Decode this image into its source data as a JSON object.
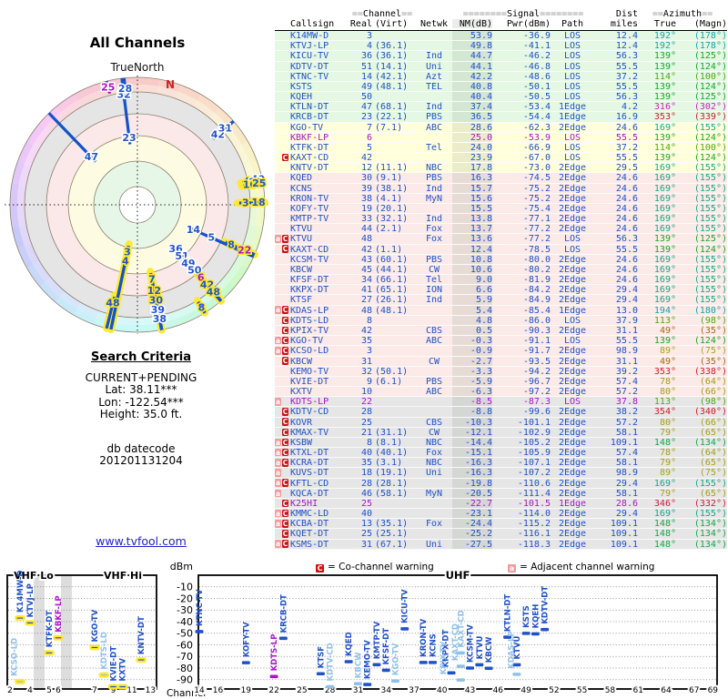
{
  "colors": {
    "blue": "#2051c9",
    "light_blue": "#8fc0ea",
    "purple": "#a816c8",
    "highlight_yellow": "#ffe92e",
    "co_warning": "#cc1111",
    "adj_warning": "#f29b9b",
    "zone_green": "#e4f8e4",
    "zone_yellow": "#ffffd9",
    "zone_pink": "#fbeae7",
    "zone_gray": "#e6e6e6",
    "link_blue": "#2222cc",
    "north_red": "#cc2222"
  },
  "radar": {
    "title": "All Channels",
    "north_label": "TrueNorth",
    "n_marker": "N"
  },
  "search": {
    "heading": "Search Criteria",
    "mode": "CURRENT+PENDING",
    "lat": "Lat: 38.11***",
    "lon": "Lon: -122.54***",
    "height": "Height: 35.0 ft.",
    "db_label": "db datecode",
    "db_code": "201201131204"
  },
  "link": "www.tvfool.com",
  "table": {
    "h1": {
      "c_pre": "==",
      "c_label": "Channel",
      "c_post": "==",
      "s_pre": "========",
      "s_label": "Signal",
      "s_post": "========",
      "dist": "Dist",
      "a_pre": "==",
      "a_label": "Azimuth",
      "a_post": "=="
    },
    "h2": {
      "cs": "Callsign",
      "real": "Real",
      "virt": "(Virt)",
      "net": "Netwk",
      "nm": "NM(dB)",
      "pwr": "Pwr(dBm)",
      "path": "Path",
      "mi": "miles",
      "true": "True",
      "magn": "(Magn)"
    }
  },
  "legend": {
    "c": "C",
    "co": "= Co-channel warning",
    "a": "a",
    "adj": "= Adjacent channel warning"
  },
  "spectrum": {
    "band_vhf_lo": "VHF Lo",
    "band_vhf_hi": "VHF Hi",
    "band_uhf": "UHF",
    "dbm": "dBm",
    "channel": "Channel",
    "dbm_ticks": [
      -10,
      -20,
      -30,
      -40,
      -50,
      -60,
      -70,
      -80,
      -90
    ],
    "vhf_ticks": [
      2,
      4,
      5,
      6,
      7,
      9,
      11,
      13
    ],
    "uhf_ticks": [
      14,
      16,
      19,
      22,
      25,
      28,
      31,
      34,
      37,
      40,
      43,
      46,
      49,
      52,
      55,
      58,
      61,
      64,
      67,
      69
    ]
  },
  "chart_data": {
    "type": [
      "polar",
      "scatter",
      "table"
    ],
    "radar_meta": {
      "title": "All Channels",
      "angle_field": "az",
      "radius_field": "nm",
      "center_is_strongest": true,
      "north_label": "TrueNorth"
    },
    "spectrum_meta": {
      "type": "scatter",
      "x_field": "ch",
      "y_field": "pwr",
      "xlabel": "Channel",
      "ylabel": "dBm",
      "ylim": [
        -100,
        0
      ],
      "bands": [
        "VHF Lo",
        "VHF Hi",
        "UHF"
      ],
      "grid": true
    },
    "stations": [
      {
        "cs": "K14MW-D",
        "ch": 3,
        "virt": "",
        "net": "",
        "nm": 53.9,
        "pwr": -36.9,
        "path": "LOS",
        "mi": 12.4,
        "az": 192,
        "mag": 178,
        "zone": "green",
        "cc": "",
        "hl": true
      },
      {
        "cs": "KTVJ-LP",
        "ch": 4,
        "virt": "(36.1)",
        "net": "",
        "nm": 49.8,
        "pwr": -41.1,
        "path": "LOS",
        "mi": 12.4,
        "az": 192,
        "mag": 178,
        "zone": "green",
        "cc": "",
        "hl": true
      },
      {
        "cs": "KICU-TV",
        "ch": 36,
        "virt": "(36.1)",
        "net": "Ind",
        "nm": 44.7,
        "pwr": -46.2,
        "path": "LOS",
        "mi": 56.3,
        "az": 139,
        "mag": 125,
        "zone": "green",
        "cc": ""
      },
      {
        "cs": "KDTV-DT",
        "ch": 51,
        "virt": "(14.1)",
        "net": "Uni",
        "nm": 44.1,
        "pwr": -46.8,
        "path": "LOS",
        "mi": 55.5,
        "az": 139,
        "mag": 124,
        "zone": "green",
        "cc": ""
      },
      {
        "cs": "KTNC-TV",
        "ch": 14,
        "virt": "(42.1)",
        "net": "Azt",
        "nm": 42.2,
        "pwr": -48.6,
        "path": "LOS",
        "mi": 37.2,
        "az": 114,
        "mag": 100,
        "zone": "green",
        "cc": ""
      },
      {
        "cs": "KSTS",
        "ch": 49,
        "virt": "(48.1)",
        "net": "TEL",
        "nm": 40.8,
        "pwr": -50.1,
        "path": "LOS",
        "mi": 55.5,
        "az": 139,
        "mag": 124,
        "zone": "green",
        "cc": ""
      },
      {
        "cs": "KQEH",
        "ch": 50,
        "virt": "",
        "net": "",
        "nm": 40.4,
        "pwr": -50.5,
        "path": "LOS",
        "mi": 56.3,
        "az": 139,
        "mag": 125,
        "zone": "green",
        "cc": ""
      },
      {
        "cs": "KTLN-DT",
        "ch": 47,
        "virt": "(68.1)",
        "net": "Ind",
        "nm": 37.4,
        "pwr": -53.4,
        "path": "1Edge",
        "mi": 4.2,
        "az": 316,
        "mag": 302,
        "zone": "green",
        "cc": ""
      },
      {
        "cs": "KRCB-DT",
        "ch": 23,
        "virt": "(22.1)",
        "net": "PBS",
        "nm": 36.5,
        "pwr": -54.4,
        "path": "1Edge",
        "mi": 16.9,
        "az": 353,
        "mag": 339,
        "zone": "green",
        "cc": ""
      },
      {
        "cs": "KGO-TV",
        "ch": 7,
        "virt": "(7.1)",
        "net": "ABC",
        "nm": 28.6,
        "pwr": -62.3,
        "path": "2Edge",
        "mi": 24.6,
        "az": 169,
        "mag": 155,
        "zone": "yellow",
        "cc": "",
        "hl": true
      },
      {
        "cs": "KBKF-LP",
        "ch": 6,
        "virt": "",
        "net": "",
        "nm": 25.0,
        "pwr": -53.9,
        "path": "LOS",
        "mi": 55.5,
        "az": 139,
        "mag": 124,
        "zone": "yellow",
        "cc": "",
        "sty": "p",
        "hl": true
      },
      {
        "cs": "KTFK-DT",
        "ch": 5,
        "virt": "",
        "net": "Tel",
        "nm": 24.0,
        "pwr": -66.9,
        "path": "LOS",
        "mi": 37.2,
        "az": 114,
        "mag": 100,
        "zone": "yellow",
        "cc": ""
      },
      {
        "cs": "KAXT-CD",
        "ch": 42,
        "virt": "",
        "net": "",
        "nm": 23.9,
        "pwr": -67.0,
        "path": "LOS",
        "mi": 55.5,
        "az": 139,
        "mag": 124,
        "zone": "yellow",
        "cc": "C",
        "hl": true,
        "lt": true
      },
      {
        "cs": "KNTV-DT",
        "ch": 12,
        "virt": "(11.1)",
        "net": "NBC",
        "nm": 17.8,
        "pwr": -73.0,
        "path": "2Edge",
        "mi": 29.5,
        "az": 169,
        "mag": 155,
        "zone": "yellow",
        "cc": "",
        "hl": true
      },
      {
        "cs": "KQED",
        "ch": 30,
        "virt": "(9.1)",
        "net": "PBS",
        "nm": 16.3,
        "pwr": -74.5,
        "path": "2Edge",
        "mi": 24.6,
        "az": 169,
        "mag": 155,
        "zone": "pink",
        "cc": "",
        "hl": true
      },
      {
        "cs": "KCNS",
        "ch": 39,
        "virt": "(38.1)",
        "net": "Ind",
        "nm": 15.7,
        "pwr": -75.2,
        "path": "2Edge",
        "mi": 24.6,
        "az": 169,
        "mag": 155,
        "zone": "pink",
        "cc": ""
      },
      {
        "cs": "KRON-TV",
        "ch": 38,
        "virt": "(4.1)",
        "net": "MyN",
        "nm": 15.6,
        "pwr": -75.2,
        "path": "2Edge",
        "mi": 24.6,
        "az": 169,
        "mag": 155,
        "zone": "pink",
        "cc": ""
      },
      {
        "cs": "KOFY-TV",
        "ch": 19,
        "virt": "(20.1)",
        "net": "",
        "nm": 15.5,
        "pwr": -75.4,
        "path": "2Edge",
        "mi": 24.6,
        "az": 169,
        "mag": 155,
        "zone": "pink",
        "cc": ""
      },
      {
        "cs": "KMTP-TV",
        "ch": 33,
        "virt": "(32.1)",
        "net": "Ind",
        "nm": 13.8,
        "pwr": -77.1,
        "path": "2Edge",
        "mi": 24.6,
        "az": 169,
        "mag": 155,
        "zone": "pink",
        "cc": ""
      },
      {
        "cs": "KTVU",
        "ch": 44,
        "virt": "(2.1)",
        "net": "Fox",
        "nm": 13.7,
        "pwr": -77.2,
        "path": "2Edge",
        "mi": 24.6,
        "az": 169,
        "mag": 155,
        "zone": "pink",
        "cc": ""
      },
      {
        "cs": "KTVU",
        "ch": 48,
        "virt": "",
        "net": "Fox",
        "nm": 13.6,
        "pwr": -77.2,
        "path": "LOS",
        "mi": 56.3,
        "az": 139,
        "mag": 125,
        "zone": "pink",
        "cc": "aC",
        "hl": true
      },
      {
        "cs": "KAXT-CD",
        "ch": 42,
        "virt": "(1.1)",
        "net": "",
        "nm": 12.4,
        "pwr": -78.5,
        "path": "LOS",
        "mi": 55.5,
        "az": 139,
        "mag": 124,
        "zone": "pink",
        "cc": "C",
        "hl": true,
        "lt": true
      },
      {
        "cs": "KCSM-TV",
        "ch": 43,
        "virt": "(60.1)",
        "net": "PBS",
        "nm": 10.8,
        "pwr": -80.0,
        "path": "2Edge",
        "mi": 24.6,
        "az": 169,
        "mag": 155,
        "zone": "pink",
        "cc": ""
      },
      {
        "cs": "KBCW",
        "ch": 45,
        "virt": "(44.1)",
        "net": "CW",
        "nm": 10.6,
        "pwr": -80.2,
        "path": "2Edge",
        "mi": 24.6,
        "az": 169,
        "mag": 155,
        "zone": "pink",
        "cc": ""
      },
      {
        "cs": "KFSF-DT",
        "ch": 34,
        "virt": "(66.1)",
        "net": "Tel",
        "nm": 9.0,
        "pwr": -81.9,
        "path": "2Edge",
        "mi": 24.6,
        "az": 169,
        "mag": 155,
        "zone": "pink",
        "cc": ""
      },
      {
        "cs": "KKPX-DT",
        "ch": 41,
        "virt": "(65.1)",
        "net": "ION",
        "nm": 6.6,
        "pwr": -84.2,
        "path": "2Edge",
        "mi": 29.4,
        "az": 169,
        "mag": 155,
        "zone": "pink",
        "cc": ""
      },
      {
        "cs": "KTSF",
        "ch": 27,
        "virt": "(26.1)",
        "net": "Ind",
        "nm": 5.9,
        "pwr": -84.9,
        "path": "2Edge",
        "mi": 29.4,
        "az": 169,
        "mag": 155,
        "zone": "pink",
        "cc": ""
      },
      {
        "cs": "KDAS-LP",
        "ch": 48,
        "virt": "(48.1)",
        "net": "",
        "nm": 5.4,
        "pwr": -85.4,
        "path": "1Edge",
        "mi": 13.0,
        "az": 194,
        "mag": 180,
        "zone": "pink",
        "cc": "aC",
        "hl": true,
        "lt": true
      },
      {
        "cs": "KDTS-LD",
        "ch": 8,
        "virt": "",
        "net": "",
        "nm": 4.8,
        "pwr": -86.0,
        "path": "LOS",
        "mi": 37.9,
        "az": 113,
        "mag": 98,
        "zone": "pink",
        "cc": "C",
        "hl": true,
        "lt": true
      },
      {
        "cs": "KPIX-TV",
        "ch": 42,
        "virt": "",
        "net": "CBS",
        "nm": 0.5,
        "pwr": -90.3,
        "path": "2Edge",
        "mi": 31.1,
        "az": 49,
        "mag": 35,
        "zone": "pink",
        "cc": "C",
        "lt": true
      },
      {
        "cs": "KGO-TV",
        "ch": 35,
        "virt": "",
        "net": "ABC",
        "nm": -0.3,
        "pwr": -91.1,
        "path": "LOS",
        "mi": 55.5,
        "az": 139,
        "mag": 124,
        "zone": "pink",
        "cc": "aC",
        "hl": true,
        "lt": true
      },
      {
        "cs": "KCSO-LD",
        "ch": 3,
        "virt": "",
        "net": "",
        "nm": -0.9,
        "pwr": -91.7,
        "path": "2Edge",
        "mi": 98.9,
        "az": 89,
        "mag": 75,
        "zone": "pink",
        "cc": "aC",
        "hl": true,
        "lt": true
      },
      {
        "cs": "KBCW",
        "ch": 31,
        "virt": "",
        "net": "CW",
        "nm": -2.7,
        "pwr": -93.5,
        "path": "2Edge",
        "mi": 31.1,
        "az": 49,
        "mag": 35,
        "zone": "pink",
        "cc": "C",
        "lt": true
      },
      {
        "cs": "KEMO-TV",
        "ch": 32,
        "virt": "(50.1)",
        "net": "",
        "nm": -3.3,
        "pwr": -94.2,
        "path": "2Edge",
        "mi": 39.2,
        "az": 353,
        "mag": 338,
        "zone": "pink",
        "cc": ""
      },
      {
        "cs": "KVIE-DT",
        "ch": 9,
        "virt": "(6.1)",
        "net": "PBS",
        "nm": -5.9,
        "pwr": -96.7,
        "path": "2Edge",
        "mi": 57.4,
        "az": 78,
        "mag": 64,
        "zone": "pink",
        "cc": "",
        "hl": true
      },
      {
        "cs": "KXTV",
        "ch": 10,
        "virt": "",
        "net": "ABC",
        "nm": -6.3,
        "pwr": -97.2,
        "path": "2Edge",
        "mi": 57.2,
        "az": 80,
        "mag": 66,
        "zone": "pink",
        "cc": "",
        "hl": true
      },
      {
        "cs": "KDTS-LP",
        "ch": 22,
        "virt": "",
        "net": "",
        "nm": -8.5,
        "pwr": -87.3,
        "path": "LOS",
        "mi": 37.8,
        "az": 113,
        "mag": 98,
        "zone": "gray",
        "cc": "a",
        "sty": "p",
        "hl": true
      },
      {
        "cs": "KDTV-CD",
        "ch": 28,
        "virt": "",
        "net": "",
        "nm": -8.8,
        "pwr": -99.6,
        "path": "2Edge",
        "mi": 38.2,
        "az": 354,
        "mag": 340,
        "zone": "gray",
        "cc": "C",
        "lt": true
      },
      {
        "cs": "KOVR",
        "ch": 25,
        "virt": "",
        "net": "CBS",
        "nm": -10.3,
        "pwr": -101.1,
        "path": "2Edge",
        "mi": 57.2,
        "az": 80,
        "mag": 66,
        "zone": "gray",
        "cc": "C",
        "hl": true
      },
      {
        "cs": "KMAX-TV",
        "ch": 21,
        "virt": "(31.1)",
        "net": "CW",
        "nm": -12.1,
        "pwr": -102.9,
        "path": "2Edge",
        "mi": 58.1,
        "az": 79,
        "mag": 65,
        "zone": "gray",
        "cc": "C"
      },
      {
        "cs": "KSBW",
        "ch": 8,
        "virt": "(8.1)",
        "net": "NBC",
        "nm": -14.4,
        "pwr": -105.2,
        "path": "2Edge",
        "mi": 109.1,
        "az": 148,
        "mag": 134,
        "zone": "gray",
        "cc": "aC",
        "hl": true
      },
      {
        "cs": "KTXL-DT",
        "ch": 40,
        "virt": "(40.1)",
        "net": "Fox",
        "nm": -15.1,
        "pwr": -105.9,
        "path": "2Edge",
        "mi": 57.4,
        "az": 78,
        "mag": 64,
        "zone": "gray",
        "cc": "aC"
      },
      {
        "cs": "KCRA-DT",
        "ch": 35,
        "virt": "(3.1)",
        "net": "NBC",
        "nm": -16.3,
        "pwr": -107.1,
        "path": "2Edge",
        "mi": 58.1,
        "az": 79,
        "mag": 65,
        "zone": "gray",
        "cc": "aC"
      },
      {
        "cs": "KUVS-DT",
        "ch": 18,
        "virt": "(19.1)",
        "net": "Uni",
        "nm": -16.3,
        "pwr": -107.2,
        "path": "2Edge",
        "mi": 98.9,
        "az": 89,
        "mag": 75,
        "zone": "gray",
        "cc": "a",
        "hl": true
      },
      {
        "cs": "KFTL-CD",
        "ch": 28,
        "virt": "(28.1)",
        "net": "",
        "nm": -19.8,
        "pwr": -110.6,
        "path": "2Edge",
        "mi": 29.4,
        "az": 169,
        "mag": 155,
        "zone": "gray",
        "cc": "aC"
      },
      {
        "cs": "KQCA-DT",
        "ch": 46,
        "virt": "(58.1)",
        "net": "MyN",
        "nm": -20.5,
        "pwr": -111.4,
        "path": "2Edge",
        "mi": 58.1,
        "az": 79,
        "mag": 65,
        "zone": "gray",
        "cc": "a"
      },
      {
        "cs": "K25HI",
        "ch": 25,
        "virt": "",
        "net": "",
        "nm": -22.7,
        "pwr": -101.5,
        "path": "1Edge",
        "mi": 28.6,
        "az": 346,
        "mag": 332,
        "zone": "gray",
        "cc": "C",
        "sty": "p"
      },
      {
        "cs": "KMMC-LD",
        "ch": 40,
        "virt": "",
        "net": "",
        "nm": -23.1,
        "pwr": -114.0,
        "path": "2Edge",
        "mi": 29.4,
        "az": 169,
        "mag": 155,
        "zone": "gray",
        "cc": "aC"
      },
      {
        "cs": "KCBA-DT",
        "ch": 13,
        "virt": "(35.1)",
        "net": "Fox",
        "nm": -24.4,
        "pwr": -115.2,
        "path": "2Edge",
        "mi": 109.1,
        "az": 148,
        "mag": 134,
        "zone": "gray",
        "cc": "aC"
      },
      {
        "cs": "KQET-DT",
        "ch": 25,
        "virt": "(25.1)",
        "net": "",
        "nm": -25.2,
        "pwr": -116.1,
        "path": "2Edge",
        "mi": 109.1,
        "az": 148,
        "mag": 134,
        "zone": "gray",
        "cc": "C"
      },
      {
        "cs": "KSMS-DT",
        "ch": 31,
        "virt": "(67.1)",
        "net": "Uni",
        "nm": -27.5,
        "pwr": -118.3,
        "path": "2Edge",
        "mi": 109.1,
        "az": 148,
        "mag": 134,
        "zone": "gray",
        "cc": "aC"
      }
    ]
  }
}
